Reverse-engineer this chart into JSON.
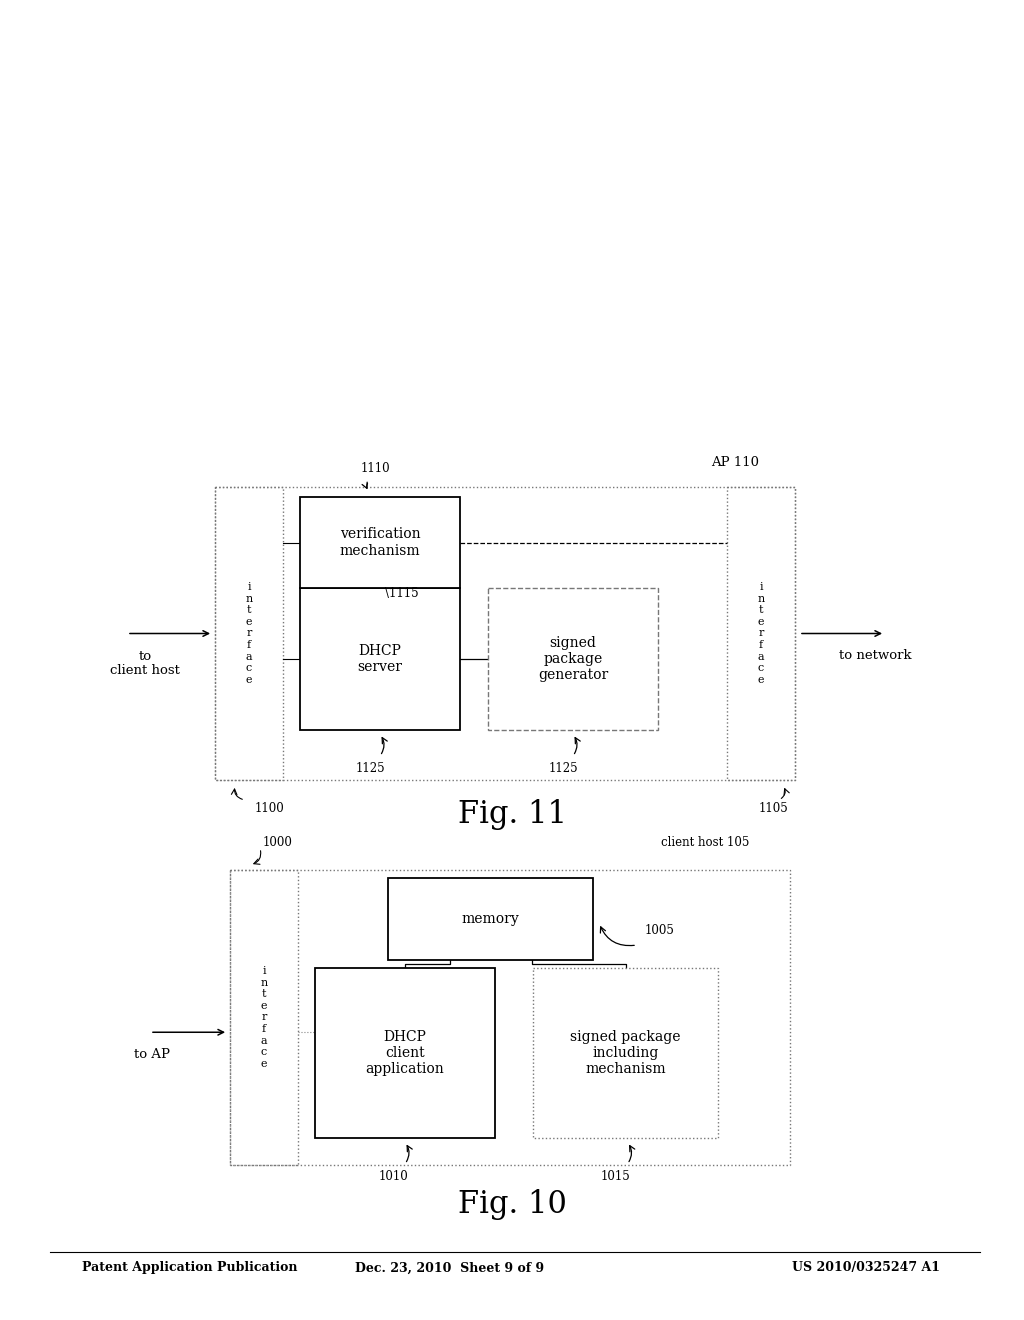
{
  "bg_color": "#ffffff",
  "header_left": "Patent Application Publication",
  "header_center": "Dec. 23, 2010  Sheet 9 of 9",
  "header_right": "US 2010/0325247 A1",
  "fig10_title": "Fig. 10",
  "fig11_title": "Fig. 11"
}
